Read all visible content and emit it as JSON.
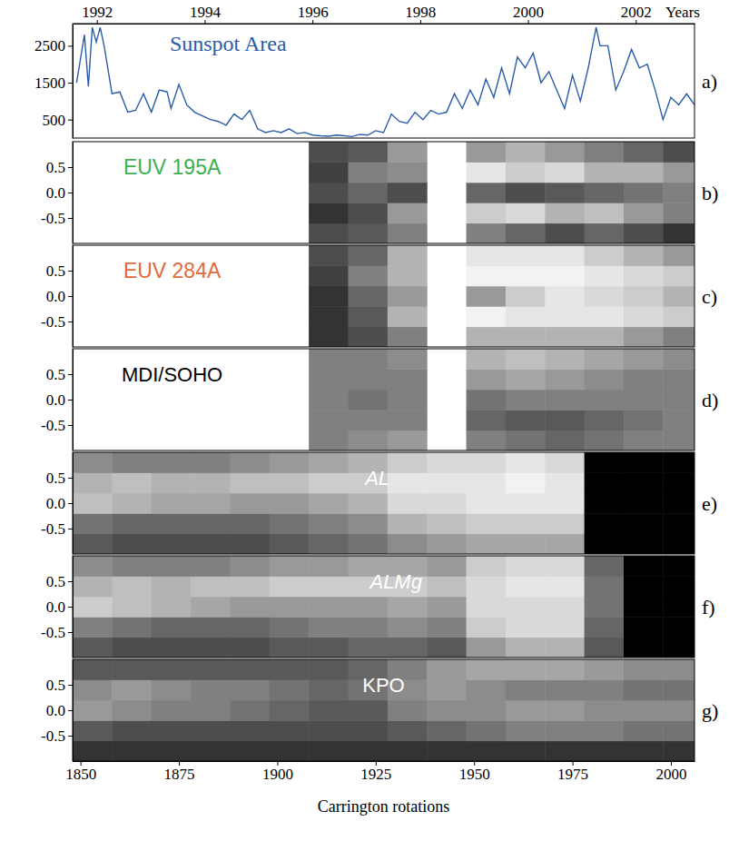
{
  "chart_data": [
    {
      "type": "line",
      "title": "Sunspot Area",
      "panel": "a)",
      "color": "#2a5caa",
      "x": [
        1849,
        1851,
        1852,
        1853,
        1854,
        1855,
        1856,
        1858,
        1860,
        1862,
        1864,
        1866,
        1868,
        1870,
        1872,
        1873,
        1875,
        1877,
        1879,
        1881,
        1883,
        1885,
        1887,
        1889,
        1891,
        1893,
        1895,
        1897,
        1899,
        1901,
        1903,
        1905,
        1907,
        1909,
        1911,
        1913,
        1915,
        1917,
        1919,
        1921,
        1923,
        1925,
        1927,
        1929,
        1931,
        1933,
        1935,
        1937,
        1939,
        1941,
        1943,
        1945,
        1947,
        1949,
        1951,
        1953,
        1955,
        1957,
        1959,
        1961,
        1963,
        1965,
        1967,
        1969,
        1971,
        1973,
        1975,
        1977,
        1979,
        1981,
        1982,
        1984,
        1986,
        1988,
        1990,
        1992,
        1994,
        1996,
        1998,
        2000,
        2002,
        2004,
        2006
      ],
      "values": [
        1500,
        2800,
        1400,
        3000,
        2600,
        3000,
        2500,
        1200,
        1250,
        700,
        750,
        1200,
        700,
        1300,
        1250,
        800,
        1450,
        900,
        700,
        600,
        500,
        450,
        350,
        650,
        500,
        750,
        250,
        150,
        200,
        150,
        250,
        120,
        150,
        80,
        60,
        50,
        80,
        60,
        40,
        100,
        80,
        200,
        150,
        650,
        450,
        400,
        700,
        500,
        750,
        650,
        700,
        1200,
        800,
        1300,
        900,
        1600,
        1100,
        1900,
        1200,
        2200,
        1900,
        2300,
        1500,
        1800,
        1300,
        800,
        1700,
        1000,
        1900,
        3000,
        2500,
        2500,
        1300,
        1800,
        2400,
        1900,
        2000,
        1300,
        500,
        1100,
        900,
        1200,
        900
      ],
      "xlim": [
        1848,
        2006
      ],
      "ylim": [
        0,
        3100
      ],
      "yticks": [
        500,
        1500,
        2500
      ],
      "x2lim": [
        1991.55,
        2003.09
      ],
      "x2ticks": [
        1992,
        1994,
        1996,
        1998,
        2000,
        2002
      ],
      "x2label": "Years",
      "tick_labels": "y"
    },
    {
      "type": "heatmap",
      "title": "EUV 195A",
      "panel": "b)",
      "color": "#3cb050",
      "x_bins": [
        1848,
        1858,
        1868,
        1878,
        1888,
        1898,
        1908,
        1918,
        1928,
        1938,
        1948,
        1958,
        1968,
        1978,
        1988,
        1998,
        2006
      ],
      "y_bins": [
        -1,
        -0.6,
        -0.2,
        0.2,
        0.6,
        1
      ],
      "values": [
        [
          null,
          null,
          null,
          null,
          null
        ],
        [
          null,
          null,
          null,
          null,
          null
        ],
        [
          null,
          null,
          null,
          null,
          null
        ],
        [
          null,
          null,
          null,
          null,
          null
        ],
        [
          null,
          null,
          null,
          null,
          null
        ],
        [
          null,
          null,
          null,
          null,
          null
        ],
        [
          0.3,
          0.2,
          0.3,
          0.25,
          0.3
        ],
        [
          0.35,
          0.3,
          0.4,
          0.5,
          0.35
        ],
        [
          0.5,
          0.6,
          0.3,
          0.55,
          0.6
        ],
        [
          null,
          null,
          null,
          null,
          null
        ],
        [
          0.5,
          0.8,
          0.4,
          0.9,
          0.6
        ],
        [
          0.4,
          0.85,
          0.3,
          0.8,
          0.7
        ],
        [
          0.3,
          0.7,
          0.35,
          0.85,
          0.6
        ],
        [
          0.4,
          0.75,
          0.4,
          0.7,
          0.5
        ],
        [
          0.3,
          0.6,
          0.45,
          0.7,
          0.4
        ],
        [
          0.2,
          0.5,
          0.5,
          0.6,
          0.3
        ]
      ],
      "zlim": [
        0,
        1
      ],
      "xlim": [
        1848,
        2006
      ],
      "ylim": [
        -1,
        1
      ],
      "yticks": [
        0.5,
        {
          "value": 0,
          "label": "0.0"
        },
        -0.5
      ],
      "tick_labels": "y"
    },
    {
      "type": "heatmap",
      "title": "EUV 284A",
      "panel": "c)",
      "color": "#e06a3a",
      "x_bins": [
        1848,
        1858,
        1868,
        1878,
        1888,
        1898,
        1908,
        1918,
        1928,
        1938,
        1948,
        1958,
        1968,
        1978,
        1988,
        1998,
        2006
      ],
      "y_bins": [
        -1,
        -0.6,
        -0.2,
        0.2,
        0.6,
        1
      ],
      "values": [
        [
          null,
          null,
          null,
          null,
          null
        ],
        [
          null,
          null,
          null,
          null,
          null
        ],
        [
          null,
          null,
          null,
          null,
          null
        ],
        [
          null,
          null,
          null,
          null,
          null
        ],
        [
          null,
          null,
          null,
          null,
          null
        ],
        [
          null,
          null,
          null,
          null,
          null
        ],
        [
          0.2,
          0.2,
          0.2,
          0.25,
          0.3
        ],
        [
          0.3,
          0.35,
          0.4,
          0.5,
          0.4
        ],
        [
          0.5,
          0.7,
          0.6,
          0.7,
          0.7
        ],
        [
          null,
          null,
          null,
          null,
          null
        ],
        [
          0.7,
          0.95,
          0.6,
          0.95,
          0.9
        ],
        [
          0.7,
          0.9,
          0.8,
          0.95,
          0.9
        ],
        [
          0.7,
          0.9,
          0.9,
          0.95,
          0.9
        ],
        [
          0.7,
          0.9,
          0.85,
          0.9,
          0.8
        ],
        [
          0.6,
          0.85,
          0.8,
          0.85,
          0.7
        ],
        [
          0.5,
          0.8,
          0.7,
          0.8,
          0.6
        ]
      ],
      "zlim": [
        0,
        1
      ],
      "xlim": [
        1848,
        2006
      ],
      "ylim": [
        -1,
        1
      ],
      "yticks": [
        0.5,
        {
          "value": 0,
          "label": "0.0"
        },
        -0.5
      ],
      "tick_labels": "y"
    },
    {
      "type": "heatmap",
      "title": "MDI/SOHO",
      "panel": "d)",
      "color": "#000000",
      "x_bins": [
        1848,
        1858,
        1868,
        1878,
        1888,
        1898,
        1908,
        1918,
        1928,
        1938,
        1948,
        1958,
        1968,
        1978,
        1988,
        1998,
        2006
      ],
      "y_bins": [
        -1,
        -0.6,
        -0.2,
        0.2,
        0.6,
        1
      ],
      "values": [
        [
          null,
          null,
          null,
          null,
          null
        ],
        [
          null,
          null,
          null,
          null,
          null
        ],
        [
          null,
          null,
          null,
          null,
          null
        ],
        [
          null,
          null,
          null,
          null,
          null
        ],
        [
          null,
          null,
          null,
          null,
          null
        ],
        [
          null,
          null,
          null,
          null,
          null
        ],
        [
          0.5,
          0.5,
          0.5,
          0.5,
          0.5
        ],
        [
          0.55,
          0.5,
          0.45,
          0.5,
          0.5
        ],
        [
          0.6,
          0.5,
          0.5,
          0.5,
          0.55
        ],
        [
          null,
          null,
          null,
          null,
          null
        ],
        [
          0.5,
          0.4,
          0.45,
          0.6,
          0.7
        ],
        [
          0.45,
          0.35,
          0.5,
          0.65,
          0.75
        ],
        [
          0.4,
          0.35,
          0.5,
          0.6,
          0.7
        ],
        [
          0.45,
          0.4,
          0.5,
          0.55,
          0.65
        ],
        [
          0.5,
          0.45,
          0.5,
          0.5,
          0.6
        ],
        [
          0.5,
          0.5,
          0.5,
          0.5,
          0.55
        ]
      ],
      "zlim": [
        0,
        1
      ],
      "xlim": [
        1848,
        2006
      ],
      "ylim": [
        -1,
        1
      ],
      "yticks": [
        0.5,
        {
          "value": 0,
          "label": "0.0"
        },
        -0.5
      ],
      "tick_labels": "y"
    },
    {
      "type": "heatmap",
      "title": "AL",
      "panel": "e)",
      "color": "#ffffff",
      "x_bins": [
        1848,
        1858,
        1868,
        1878,
        1888,
        1898,
        1908,
        1918,
        1928,
        1938,
        1948,
        1958,
        1968,
        1978,
        1988,
        1998,
        2006
      ],
      "y_bins": [
        -1,
        -0.6,
        -0.2,
        0.2,
        0.6,
        1
      ],
      "values": [
        [
          0.35,
          0.45,
          0.75,
          0.7,
          0.55
        ],
        [
          0.3,
          0.4,
          0.7,
          0.75,
          0.5
        ],
        [
          0.3,
          0.4,
          0.65,
          0.7,
          0.5
        ],
        [
          0.3,
          0.4,
          0.65,
          0.7,
          0.5
        ],
        [
          0.3,
          0.4,
          0.6,
          0.75,
          0.55
        ],
        [
          0.35,
          0.45,
          0.6,
          0.75,
          0.6
        ],
        [
          0.4,
          0.5,
          0.65,
          0.8,
          0.65
        ],
        [
          0.45,
          0.55,
          0.7,
          0.8,
          0.7
        ],
        [
          0.55,
          0.7,
          0.85,
          0.9,
          0.8
        ],
        [
          0.6,
          0.75,
          0.85,
          0.9,
          0.85
        ],
        [
          0.65,
          0.8,
          0.9,
          0.9,
          0.85
        ],
        [
          0.65,
          0.8,
          0.9,
          0.95,
          0.9
        ],
        [
          0.65,
          0.8,
          0.9,
          0.9,
          0.85
        ],
        [
          0,
          0,
          0,
          0,
          0
        ],
        [
          0,
          0,
          0,
          0,
          0
        ],
        [
          0,
          0,
          0,
          0,
          0
        ]
      ],
      "zlim": [
        0,
        1
      ],
      "xlim": [
        1848,
        2006
      ],
      "ylim": [
        -1,
        1
      ],
      "yticks": [
        0.5,
        {
          "value": 0,
          "label": "0.0"
        },
        -0.5
      ],
      "tick_labels": "y"
    },
    {
      "type": "heatmap",
      "title": "ALMg",
      "panel": "f)",
      "color": "#ffffff",
      "x_bins": [
        1848,
        1858,
        1868,
        1878,
        1888,
        1898,
        1908,
        1918,
        1928,
        1938,
        1948,
        1958,
        1968,
        1978,
        1988,
        1998,
        2006
      ],
      "y_bins": [
        -1,
        -0.6,
        -0.2,
        0.2,
        0.6,
        1
      ],
      "values": [
        [
          0.35,
          0.5,
          0.8,
          0.7,
          0.55
        ],
        [
          0.3,
          0.45,
          0.75,
          0.75,
          0.5
        ],
        [
          0.3,
          0.4,
          0.7,
          0.7,
          0.5
        ],
        [
          0.3,
          0.4,
          0.65,
          0.75,
          0.5
        ],
        [
          0.3,
          0.4,
          0.6,
          0.75,
          0.55
        ],
        [
          0.35,
          0.45,
          0.6,
          0.8,
          0.6
        ],
        [
          0.35,
          0.5,
          0.6,
          0.8,
          0.6
        ],
        [
          0.4,
          0.5,
          0.6,
          0.8,
          0.65
        ],
        [
          0.4,
          0.55,
          0.65,
          0.8,
          0.65
        ],
        [
          0.35,
          0.5,
          0.6,
          0.75,
          0.6
        ],
        [
          0.6,
          0.8,
          0.85,
          0.85,
          0.8
        ],
        [
          0.7,
          0.85,
          0.85,
          0.9,
          0.85
        ],
        [
          0.7,
          0.85,
          0.85,
          0.9,
          0.85
        ],
        [
          0.35,
          0.4,
          0.45,
          0.45,
          0.4
        ],
        [
          0,
          0,
          0,
          0,
          0
        ],
        [
          0,
          0,
          0,
          0,
          0
        ]
      ],
      "zlim": [
        0,
        1
      ],
      "xlim": [
        1848,
        2006
      ],
      "ylim": [
        -1,
        1
      ],
      "yticks": [
        0.5,
        {
          "value": 0,
          "label": "0.0"
        },
        -0.5
      ],
      "tick_labels": "y"
    },
    {
      "type": "heatmap",
      "title": "KPO",
      "panel": "g)",
      "color": "#ffffff",
      "x_bins": [
        1848,
        1858,
        1868,
        1878,
        1888,
        1898,
        1908,
        1918,
        1928,
        1938,
        1948,
        1958,
        1968,
        1978,
        1988,
        1998,
        2006
      ],
      "y_bins": [
        -1,
        -0.6,
        -0.2,
        0.2,
        0.6,
        1
      ],
      "values": [
        [
          0.2,
          0.35,
          0.6,
          0.55,
          0.35
        ],
        [
          0.2,
          0.3,
          0.55,
          0.6,
          0.35
        ],
        [
          0.2,
          0.3,
          0.5,
          0.55,
          0.35
        ],
        [
          0.2,
          0.3,
          0.5,
          0.5,
          0.35
        ],
        [
          0.2,
          0.3,
          0.45,
          0.5,
          0.35
        ],
        [
          0.2,
          0.3,
          0.4,
          0.45,
          0.35
        ],
        [
          0.2,
          0.3,
          0.35,
          0.4,
          0.35
        ],
        [
          0.2,
          0.3,
          0.35,
          0.45,
          0.4
        ],
        [
          0.2,
          0.35,
          0.5,
          0.55,
          0.5
        ],
        [
          0.2,
          0.4,
          0.55,
          0.6,
          0.6
        ],
        [
          0.2,
          0.45,
          0.55,
          0.55,
          0.65
        ],
        [
          0.2,
          0.5,
          0.6,
          0.5,
          0.65
        ],
        [
          0.2,
          0.5,
          0.6,
          0.5,
          0.65
        ],
        [
          0.2,
          0.5,
          0.55,
          0.5,
          0.6
        ],
        [
          0.2,
          0.45,
          0.55,
          0.45,
          0.55
        ],
        [
          0.2,
          0.45,
          0.55,
          0.45,
          0.55
        ]
      ],
      "zlim": [
        0,
        1
      ],
      "xlim": [
        1848,
        2006
      ],
      "ylim": [
        -1,
        1
      ],
      "yticks": [
        0.5,
        {
          "value": 0,
          "label": "0.0"
        },
        -0.5
      ],
      "xticks": [
        1850,
        1875,
        1900,
        1925,
        1950,
        1975,
        2000
      ],
      "xlabel": "Carrington rotations"
    }
  ]
}
